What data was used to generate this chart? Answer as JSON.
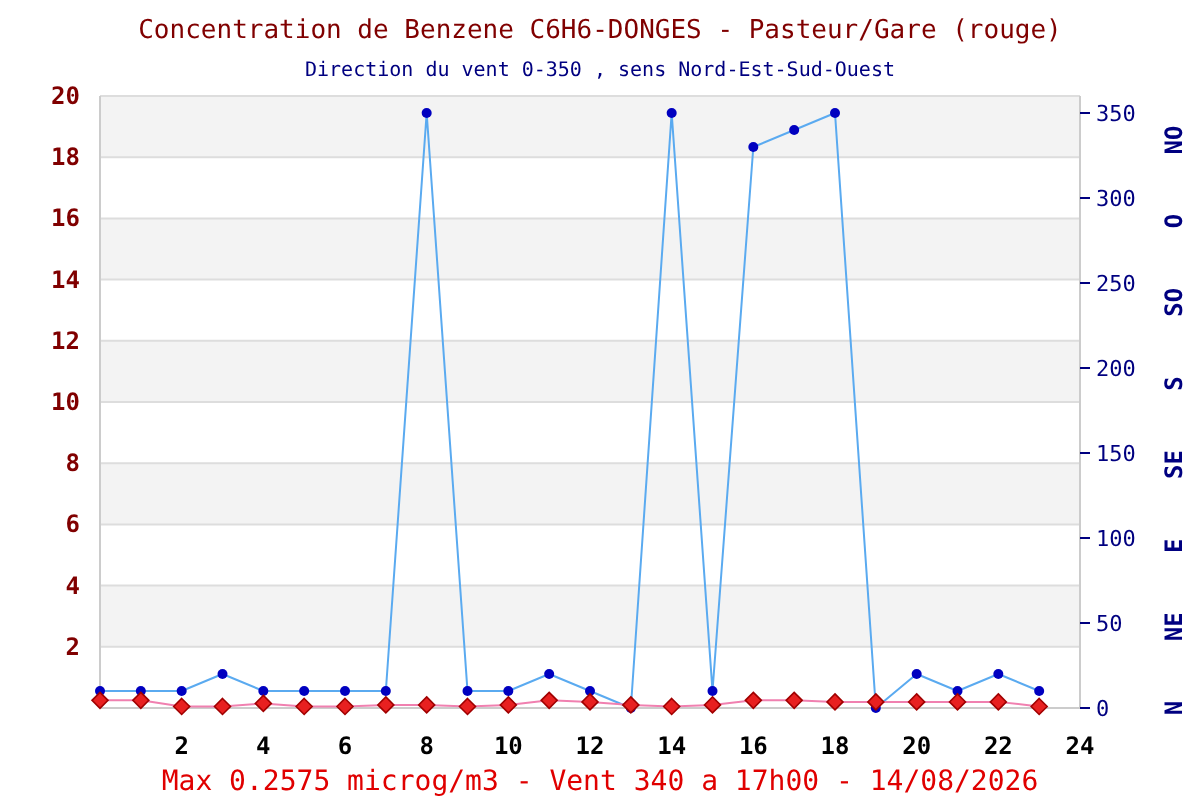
{
  "chart_data": {
    "type": "line",
    "title": "Concentration de Benzene C6H6-DONGES - Pasteur/Gare (rouge)",
    "subtitle": "Direction du vent 0-350 , sens Nord-Est-Sud-Ouest",
    "x": [
      0,
      1,
      2,
      3,
      4,
      5,
      6,
      7,
      8,
      9,
      10,
      11,
      12,
      13,
      14,
      15,
      16,
      17,
      18,
      19,
      20,
      21,
      22,
      23
    ],
    "series": [
      {
        "color": "#5aaaf0",
        "marker": "circle",
        "axis": "y2",
        "values": [
          10,
          10,
          10,
          20,
          10,
          10,
          10,
          10,
          350,
          10,
          10,
          20,
          10,
          0,
          350,
          10,
          330,
          340,
          350,
          0,
          20,
          10,
          20,
          10
        ]
      },
      {
        "color": "#e82020",
        "marker": "diamond",
        "values": [
          0.25,
          0.25,
          0.05,
          0.05,
          0.15,
          0.05,
          0.05,
          0.1,
          0.1,
          0.05,
          0.1,
          0.25,
          0.2,
          0.1,
          0.05,
          0.1,
          0.25,
          0.25,
          0.2,
          0.2,
          0.2,
          0.2,
          0.2,
          0.05
        ]
      }
    ],
    "xlim": [
      0,
      24
    ],
    "xticks": [
      2,
      4,
      6,
      8,
      10,
      12,
      14,
      16,
      18,
      20,
      22,
      24
    ],
    "ylim": [
      0,
      20
    ],
    "yticks": [
      2,
      4,
      6,
      8,
      10,
      12,
      14,
      16,
      18,
      20
    ],
    "y2lim": [
      0,
      360
    ],
    "y2ticks": [
      0,
      50,
      100,
      150,
      200,
      250,
      300,
      350
    ],
    "grid": "y",
    "annotations": [
      "Max 0.2575 microg/m3 - Vent 340  a 17h00 - 14/08/2026",
      "N",
      "NE",
      "E",
      "SE",
      "S",
      "SO",
      "O",
      "NO"
    ]
  }
}
